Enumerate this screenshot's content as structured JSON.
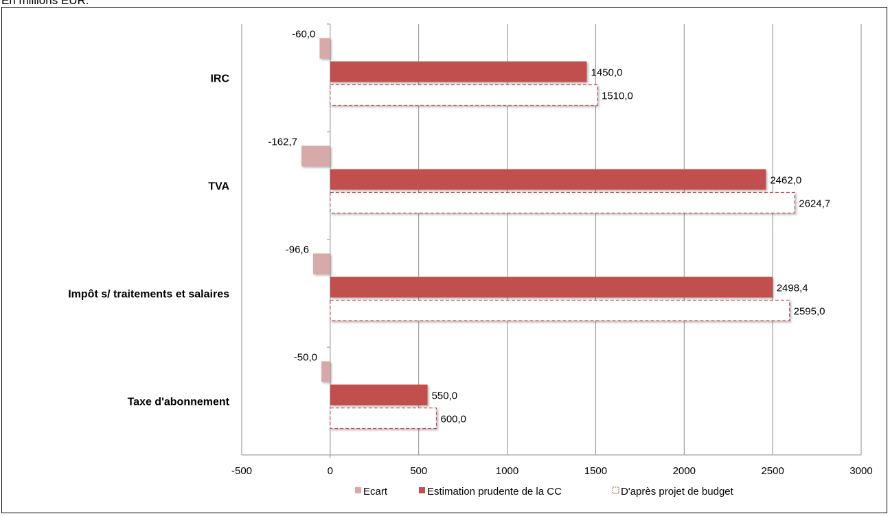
{
  "page": {
    "title": "En millions EUR:"
  },
  "chart_data": {
    "type": "bar",
    "orientation": "horizontal",
    "categories": [
      "IRC",
      "TVA",
      "Impôt s/ traitements et salaires",
      "Taxe d'abonnement"
    ],
    "series": [
      {
        "name": "Ecart",
        "values": [
          -60.0,
          -162.7,
          -96.6,
          -50.0
        ],
        "labels": [
          "-60,0",
          "-162,7",
          "-96,6",
          "-50,0"
        ],
        "color": "#d8a9a9",
        "style": "solid"
      },
      {
        "name": "Estimation prudente de la CC",
        "values": [
          1450.0,
          2462.0,
          2498.4,
          550.0
        ],
        "labels": [
          "1450,0",
          "2462,0",
          "2498,4",
          "550,0"
        ],
        "color": "#c0504d",
        "style": "solid"
      },
      {
        "name": "D'après projet de budget",
        "values": [
          1510.0,
          2624.7,
          2595.0,
          600.0
        ],
        "labels": [
          "1510,0",
          "2624,7",
          "2595,0",
          "600,0"
        ],
        "color": "#c0504d",
        "style": "dashed-outline"
      }
    ],
    "xlim": [
      -500,
      3000
    ],
    "xticks": [
      -500,
      0,
      500,
      1000,
      1500,
      2000,
      2500,
      3000
    ],
    "grid": true,
    "legend": "bottom"
  }
}
